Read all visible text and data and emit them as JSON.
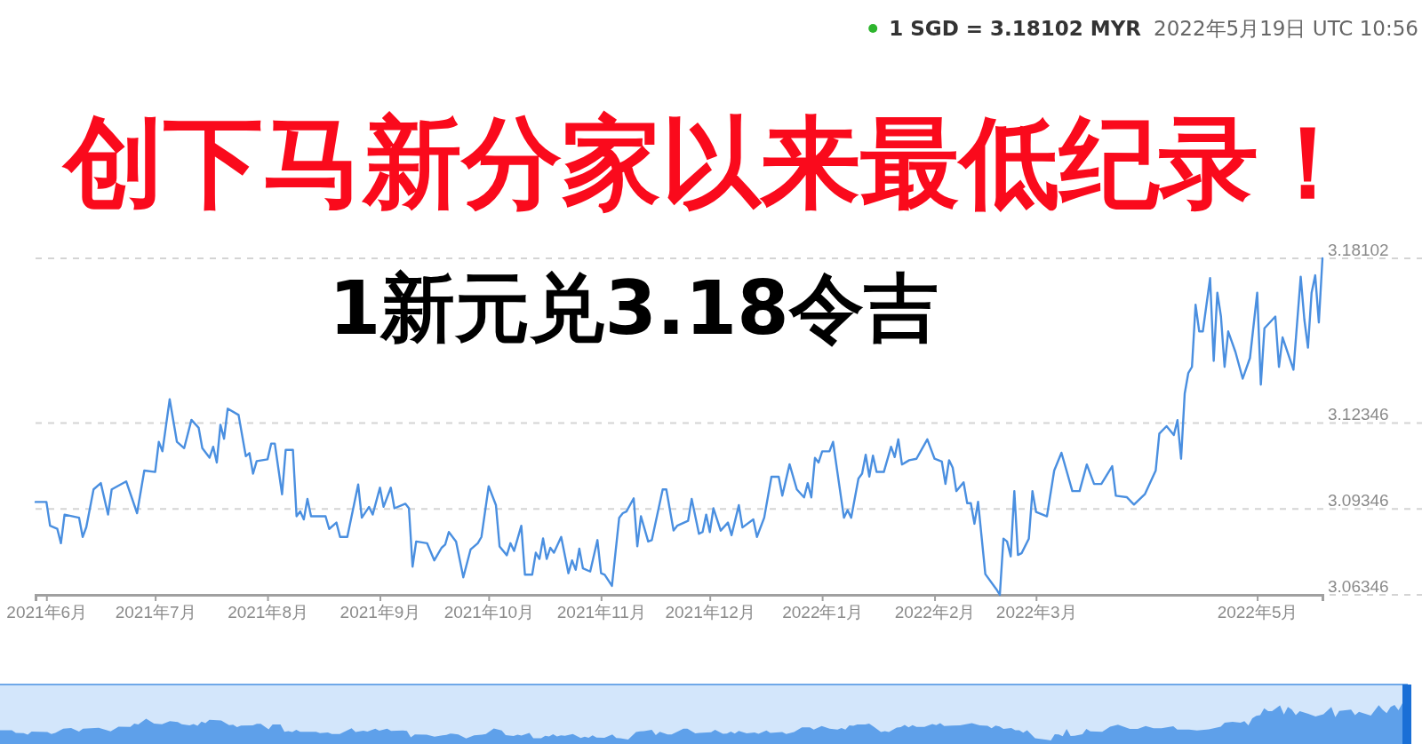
{
  "chart_data": {
    "type": "line",
    "title": "创下马新分家以来最低纪录！",
    "subtitle": "1新元兑3.18令吉",
    "annotations": [
      "1 SGD = 3.18102 MYR",
      "2022年5月19日 UTC 10:56"
    ],
    "color": "#4a8fe0",
    "x": [
      "2021-05-29",
      "2021-06-01",
      "2021-06-02",
      "2021-06-04",
      "2021-06-05",
      "2021-06-06",
      "2021-06-10",
      "2021-06-11",
      "2021-06-12",
      "2021-06-14",
      "2021-06-16",
      "2021-06-18",
      "2021-06-19",
      "2021-06-23",
      "2021-06-26",
      "2021-06-28",
      "2021-07-01",
      "2021-07-02",
      "2021-07-03",
      "2021-07-05",
      "2021-07-07",
      "2021-07-09",
      "2021-07-11",
      "2021-07-13",
      "2021-07-14",
      "2021-07-16",
      "2021-07-17",
      "2021-07-18",
      "2021-07-19",
      "2021-07-20",
      "2021-07-21",
      "2021-07-24",
      "2021-07-26",
      "2021-07-27",
      "2021-07-28",
      "2021-07-29",
      "2021-08-01",
      "2021-08-02",
      "2021-08-03",
      "2021-08-05",
      "2021-08-06",
      "2021-08-08",
      "2021-08-09",
      "2021-08-10",
      "2021-08-11",
      "2021-08-12",
      "2021-08-13",
      "2021-08-17",
      "2021-08-18",
      "2021-08-20",
      "2021-08-21",
      "2021-08-23",
      "2021-08-26",
      "2021-08-27",
      "2021-08-29",
      "2021-08-30",
      "2021-09-01",
      "2021-09-02",
      "2021-09-04",
      "2021-09-05",
      "2021-09-08",
      "2021-09-09",
      "2021-09-10",
      "2021-09-11",
      "2021-09-14",
      "2021-09-16",
      "2021-09-18",
      "2021-09-19",
      "2021-09-20",
      "2021-09-22",
      "2021-09-24",
      "2021-09-26",
      "2021-09-28",
      "2021-09-29",
      "2021-10-01",
      "2021-10-03",
      "2021-10-04",
      "2021-10-06",
      "2021-10-07",
      "2021-10-08",
      "2021-10-10",
      "2021-10-11",
      "2021-10-13",
      "2021-10-14",
      "2021-10-15",
      "2021-10-16",
      "2021-10-17",
      "2021-10-18",
      "2021-10-19",
      "2021-10-21",
      "2021-10-23",
      "2021-10-24",
      "2021-10-25",
      "2021-10-26",
      "2021-10-27",
      "2021-10-29",
      "2021-10-31",
      "2021-11-01",
      "2021-11-02",
      "2021-11-04",
      "2021-11-06",
      "2021-11-07",
      "2021-11-08",
      "2021-11-10",
      "2021-11-11",
      "2021-11-12",
      "2021-11-14",
      "2021-11-15",
      "2021-11-18",
      "2021-11-19",
      "2021-11-21",
      "2021-11-22",
      "2021-11-25",
      "2021-11-26",
      "2021-11-28",
      "2021-11-29",
      "2021-11-30",
      "2021-12-01",
      "2021-12-02",
      "2021-12-04",
      "2021-12-06",
      "2021-12-07",
      "2021-12-09",
      "2021-12-10",
      "2021-12-13",
      "2021-12-14",
      "2021-12-16",
      "2021-12-18",
      "2021-12-20",
      "2021-12-21",
      "2021-12-23",
      "2021-12-25",
      "2021-12-27",
      "2021-12-28",
      "2021-12-29",
      "2021-12-30",
      "2021-12-31",
      "2022-01-01",
      "2022-01-03",
      "2022-01-04",
      "2022-01-05",
      "2022-01-07",
      "2022-01-08",
      "2022-01-09",
      "2022-01-11",
      "2022-01-12",
      "2022-01-13",
      "2022-01-14",
      "2022-01-15",
      "2022-01-16",
      "2022-01-18",
      "2022-01-20",
      "2022-01-21",
      "2022-01-22",
      "2022-01-23",
      "2022-01-25",
      "2022-01-27",
      "2022-01-30",
      "2022-02-01",
      "2022-02-03",
      "2022-02-04",
      "2022-02-05",
      "2022-02-06",
      "2022-02-07",
      "2022-02-09",
      "2022-02-10",
      "2022-02-11",
      "2022-02-12",
      "2022-02-13",
      "2022-02-15",
      "2022-02-18",
      "2022-02-19",
      "2022-02-20",
      "2022-02-21",
      "2022-02-22",
      "2022-02-23",
      "2022-02-24",
      "2022-02-25",
      "2022-02-27",
      "2022-02-28",
      "2022-03-01",
      "2022-03-04",
      "2022-03-06",
      "2022-03-08",
      "2022-03-11",
      "2022-03-13",
      "2022-03-15",
      "2022-03-17",
      "2022-03-19",
      "2022-03-22",
      "2022-03-23",
      "2022-03-26",
      "2022-03-28",
      "2022-03-31",
      "2022-04-03",
      "2022-04-04",
      "2022-04-06",
      "2022-04-08",
      "2022-04-09",
      "2022-04-10",
      "2022-04-11",
      "2022-04-12",
      "2022-04-13",
      "2022-04-14",
      "2022-04-15",
      "2022-04-16",
      "2022-04-18",
      "2022-04-19",
      "2022-04-20",
      "2022-04-21",
      "2022-04-22",
      "2022-04-23",
      "2022-04-25",
      "2022-04-27",
      "2022-04-29",
      "2022-05-01",
      "2022-05-02",
      "2022-05-03",
      "2022-05-06",
      "2022-05-07",
      "2022-05-08",
      "2022-05-11",
      "2022-05-13",
      "2022-05-14",
      "2022-05-15",
      "2022-05-16",
      "2022-05-17",
      "2022-05-18",
      "2022-05-19"
    ],
    "values": [
      3.0959,
      3.0959,
      3.0876,
      3.0865,
      3.0815,
      3.0915,
      3.0904,
      3.0837,
      3.0871,
      3.1003,
      3.1025,
      3.0915,
      3.1003,
      3.1031,
      3.092,
      3.1069,
      3.1064,
      3.1169,
      3.1136,
      3.1318,
      3.1169,
      3.1147,
      3.1246,
      3.1218,
      3.1147,
      3.1114,
      3.1152,
      3.1097,
      3.1229,
      3.118,
      3.1285,
      3.1263,
      3.1119,
      3.113,
      3.1058,
      3.1102,
      3.1108,
      3.1163,
      3.1163,
      3.0986,
      3.1141,
      3.1141,
      3.0909,
      3.0926,
      3.0898,
      3.097,
      3.0909,
      3.0909,
      3.0865,
      3.0887,
      3.0837,
      3.0837,
      3.102,
      3.0904,
      3.0942,
      3.0915,
      3.1009,
      3.0942,
      3.1009,
      3.0937,
      3.0953,
      3.0937,
      3.0733,
      3.0821,
      3.0815,
      3.0755,
      3.0799,
      3.081,
      3.0854,
      3.0821,
      3.0696,
      3.0793,
      3.0815,
      3.0837,
      3.1014,
      3.0948,
      3.0804,
      3.0773,
      3.0815,
      3.0788,
      3.0876,
      3.0705,
      3.0705,
      3.0782,
      3.076,
      3.0832,
      3.076,
      3.0799,
      3.0782,
      3.0837,
      3.071,
      3.0755,
      3.0722,
      3.0796,
      3.0727,
      3.0716,
      3.0826,
      3.071,
      3.0705,
      3.0666,
      3.0904,
      3.092,
      3.0926,
      3.0972,
      3.0804,
      3.0909,
      3.0821,
      3.0826,
      3.1003,
      3.1003,
      3.0859,
      3.0876,
      3.0893,
      3.097,
      3.0848,
      3.0854,
      3.0915,
      3.0854,
      3.0937,
      3.0859,
      3.0887,
      3.0843,
      3.0948,
      3.087,
      3.0898,
      3.0837,
      3.0904,
      3.1047,
      3.1047,
      3.0981,
      3.1091,
      3.1003,
      3.0975,
      3.1025,
      3.0975,
      3.1113,
      3.1097,
      3.1136,
      3.1136,
      3.1169,
      3.108,
      3.0904,
      3.0931,
      3.0904,
      3.1041,
      3.1058,
      3.1124,
      3.1048,
      3.1121,
      3.1064,
      3.1064,
      3.1152,
      3.1116,
      3.1178,
      3.109,
      3.1105,
      3.111,
      3.1178,
      3.111,
      3.11,
      3.1022,
      3.1105,
      3.1079,
      3.0997,
      3.1028,
      3.0955,
      3.0955,
      3.0883,
      3.096,
      3.0707,
      3.0655,
      3.0635,
      3.0831,
      3.0821,
      3.0769,
      3.0997,
      3.0774,
      3.078,
      3.0831,
      3.0997,
      3.0924,
      3.0909,
      3.1069,
      3.1131,
      3.0997,
      3.0997,
      3.109,
      3.1022,
      3.1022,
      3.1084,
      3.0981,
      3.0976,
      3.095,
      3.0986,
      3.1069,
      3.1198,
      3.1224,
      3.1193,
      3.1245,
      3.111,
      3.1338,
      3.141,
      3.1431,
      3.1648,
      3.1555,
      3.1555,
      3.1741,
      3.1452,
      3.169,
      3.1607,
      3.1431,
      3.1555,
      3.1483,
      3.139,
      3.1462,
      3.169,
      3.1369,
      3.1566,
      3.1607,
      3.1431,
      3.1534,
      3.1421,
      3.1746,
      3.1597,
      3.1498,
      3.169,
      3.1751,
      3.1586,
      3.18102
    ],
    "xlim": [
      "2021-05-29",
      "2022-05-19"
    ],
    "xticks": [
      {
        "value": "2021-06-01",
        "label": "2021年6月"
      },
      {
        "value": "2021-07-01",
        "label": "2021年7月"
      },
      {
        "value": "2021-08-01",
        "label": "2021年8月"
      },
      {
        "value": "2021-09-01",
        "label": "2021年9月"
      },
      {
        "value": "2021-10-01",
        "label": "2021年10月"
      },
      {
        "value": "2021-11-01",
        "label": "2021年11月"
      },
      {
        "value": "2021-12-01",
        "label": "2021年12月"
      },
      {
        "value": "2022-01-01",
        "label": "2022年1月"
      },
      {
        "value": "2022-02-01",
        "label": "2022年2月"
      },
      {
        "value": "2022-03-01",
        "label": "2022年3月"
      },
      {
        "value": "2022-05-01",
        "label": "2022年5月"
      }
    ],
    "ylim": [
      3.06346,
      3.18102
    ],
    "yticks": [
      3.06346,
      3.09346,
      3.12346,
      3.18102
    ],
    "grid": "y"
  }
}
